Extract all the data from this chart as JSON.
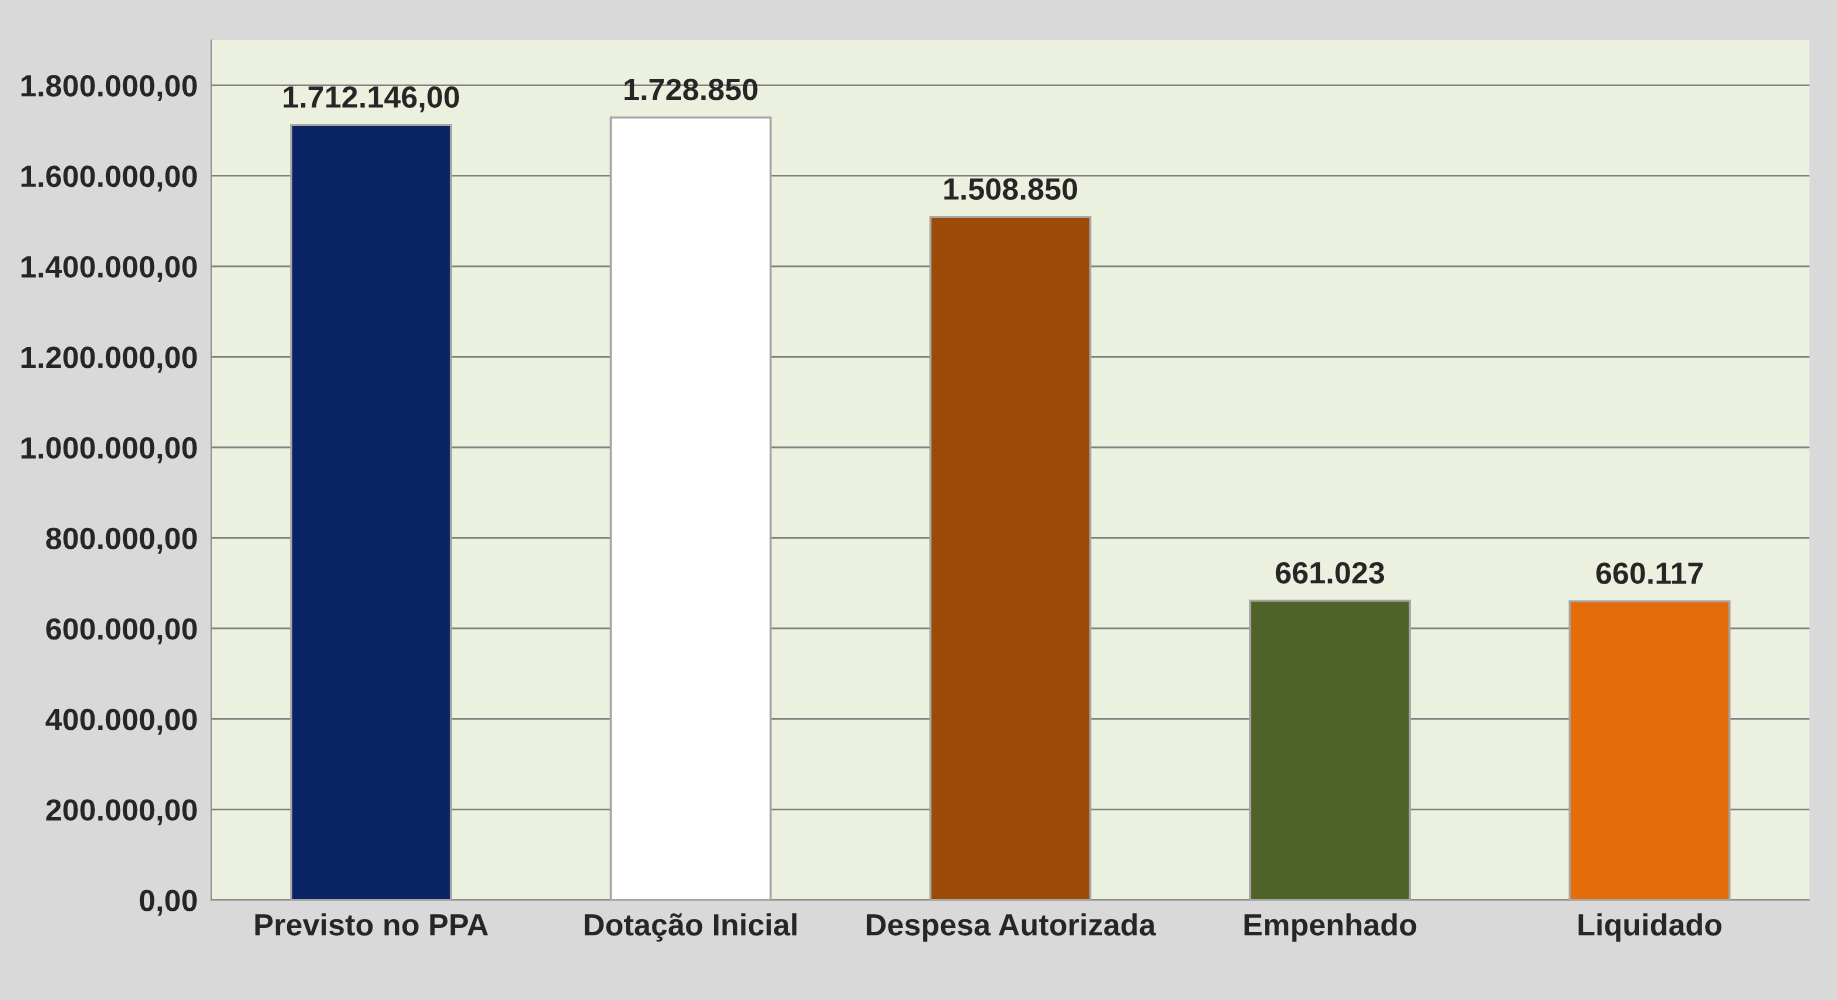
{
  "chart_data": {
    "type": "bar",
    "categories": [
      "Previsto no PPA",
      "Dotação Inicial",
      "Despesa Autorizada",
      "Empenhado",
      "Liquidado"
    ],
    "values": [
      1712146,
      1728850,
      1508850,
      661023,
      660117
    ],
    "colors": [
      "#0a2463",
      "#ffffff",
      "#9c4a08",
      "#4f6228",
      "#e46c0a"
    ],
    "value_labels": [
      "1.712.146,00",
      "1.728.850",
      "1.508.850",
      "661.023",
      "660.117"
    ],
    "ylim": [
      0,
      1900000
    ],
    "yticks": [
      {
        "value": 0,
        "label": "0,00"
      },
      {
        "value": 200000,
        "label": "200.000,00"
      },
      {
        "value": 400000,
        "label": "400.000,00"
      },
      {
        "value": 600000,
        "label": "600.000,00"
      },
      {
        "value": 800000,
        "label": "800.000,00"
      },
      {
        "value": 1000000,
        "label": "1.000.000,00"
      },
      {
        "value": 1200000,
        "label": "1.200.000,00"
      },
      {
        "value": 1400000,
        "label": "1.400.000,00"
      },
      {
        "value": 1600000,
        "label": "1.600.000,00"
      },
      {
        "value": 1800000,
        "label": "1.800.000,00"
      }
    ],
    "grid": "y",
    "legend": false
  }
}
